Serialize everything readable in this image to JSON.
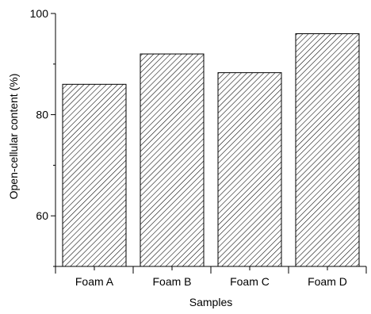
{
  "chart_data": {
    "type": "bar",
    "categories": [
      "Foam A",
      "Foam B",
      "Foam C",
      "Foam D"
    ],
    "values": [
      86.0,
      92.0,
      88.3,
      96.0
    ],
    "xlabel": "Samples",
    "ylabel": "Open-cellular content (%)",
    "ylim": [
      50,
      100
    ],
    "yticks": [
      60,
      80,
      100
    ],
    "y_minor_step": 10,
    "bar_fill": "diagonal-hatch",
    "colors": {
      "bar_stroke": "#000000",
      "hatch": "#000000",
      "background": "#ffffff"
    },
    "grid": false,
    "legend": "none"
  }
}
